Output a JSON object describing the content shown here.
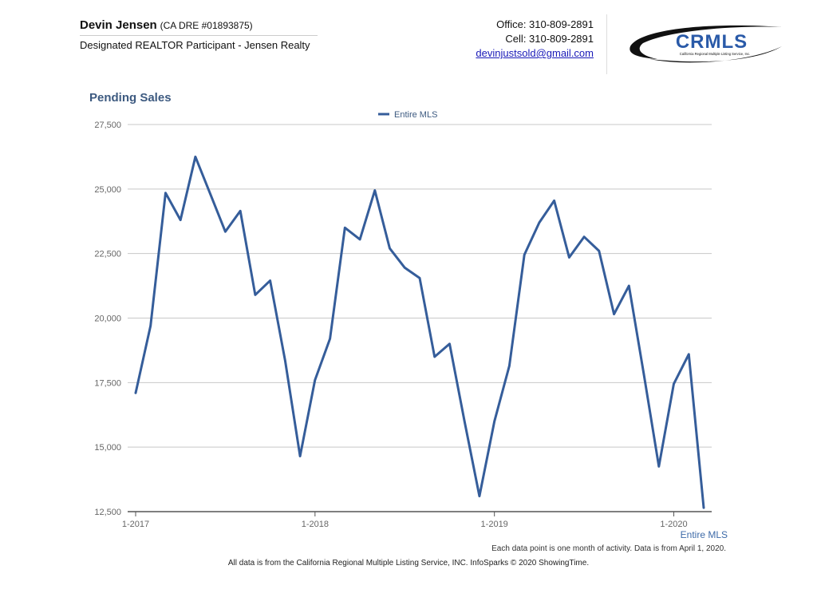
{
  "agent": {
    "name": "Devin Jensen",
    "license": "(CA DRE #01893875)",
    "title": "Designated REALTOR Participant - Jensen Realty"
  },
  "contact": {
    "office": "Office: 310-809-2891",
    "cell": "Cell: 310-809-2891",
    "email": "devinjustsold@gmail.com"
  },
  "logo": {
    "text": "CRMLS",
    "subtitle": "California Regional Multiple Listing Service, Inc.",
    "colors": {
      "swoosh": "#111111",
      "letters": "#2a5aa8"
    }
  },
  "chart_title": "Pending Sales",
  "series_label": "Entire MLS",
  "note": "Each data point is one month of activity. Data is from April 1, 2020.",
  "footer": "All data is from the California Regional Multiple Listing Service, INC. InfoSparks © 2020 ShowingTime.",
  "colors": {
    "series": "#355d9a",
    "title": "#3d5a80"
  },
  "chart_data": {
    "type": "line",
    "title": "Pending Sales",
    "xlabel": "",
    "ylabel": "",
    "ylim": [
      12500,
      27500
    ],
    "yticks": [
      "27,500",
      "25,000",
      "22,500",
      "20,000",
      "17,500",
      "15,000",
      "12,500"
    ],
    "ytick_values": [
      27500,
      25000,
      22500,
      20000,
      17500,
      15000,
      12500
    ],
    "xticks": [
      "1-2017",
      "1-2018",
      "1-2019",
      "1-2020"
    ],
    "grid": true,
    "legend": "top-center",
    "x": [
      "1-2017",
      "2-2017",
      "3-2017",
      "4-2017",
      "5-2017",
      "6-2017",
      "7-2017",
      "8-2017",
      "9-2017",
      "10-2017",
      "11-2017",
      "12-2017",
      "1-2018",
      "2-2018",
      "3-2018",
      "4-2018",
      "5-2018",
      "6-2018",
      "7-2018",
      "8-2018",
      "9-2018",
      "10-2018",
      "11-2018",
      "12-2018",
      "1-2019",
      "2-2019",
      "3-2019",
      "4-2019",
      "5-2019",
      "6-2019",
      "7-2019",
      "8-2019",
      "9-2019",
      "10-2019",
      "11-2019",
      "12-2019",
      "1-2020",
      "2-2020",
      "3-2020"
    ],
    "series": [
      {
        "name": "Entire MLS",
        "values": [
          17100,
          19700,
          24850,
          23800,
          26250,
          24800,
          23350,
          24150,
          20900,
          21450,
          18350,
          14650,
          17600,
          19200,
          23500,
          23050,
          24950,
          22700,
          21950,
          21550,
          18500,
          19000,
          16000,
          13100,
          16000,
          18150,
          22450,
          23700,
          24550,
          22350,
          23150,
          22600,
          20150,
          21250,
          17800,
          14250,
          17450,
          18600,
          12650
        ]
      }
    ]
  }
}
